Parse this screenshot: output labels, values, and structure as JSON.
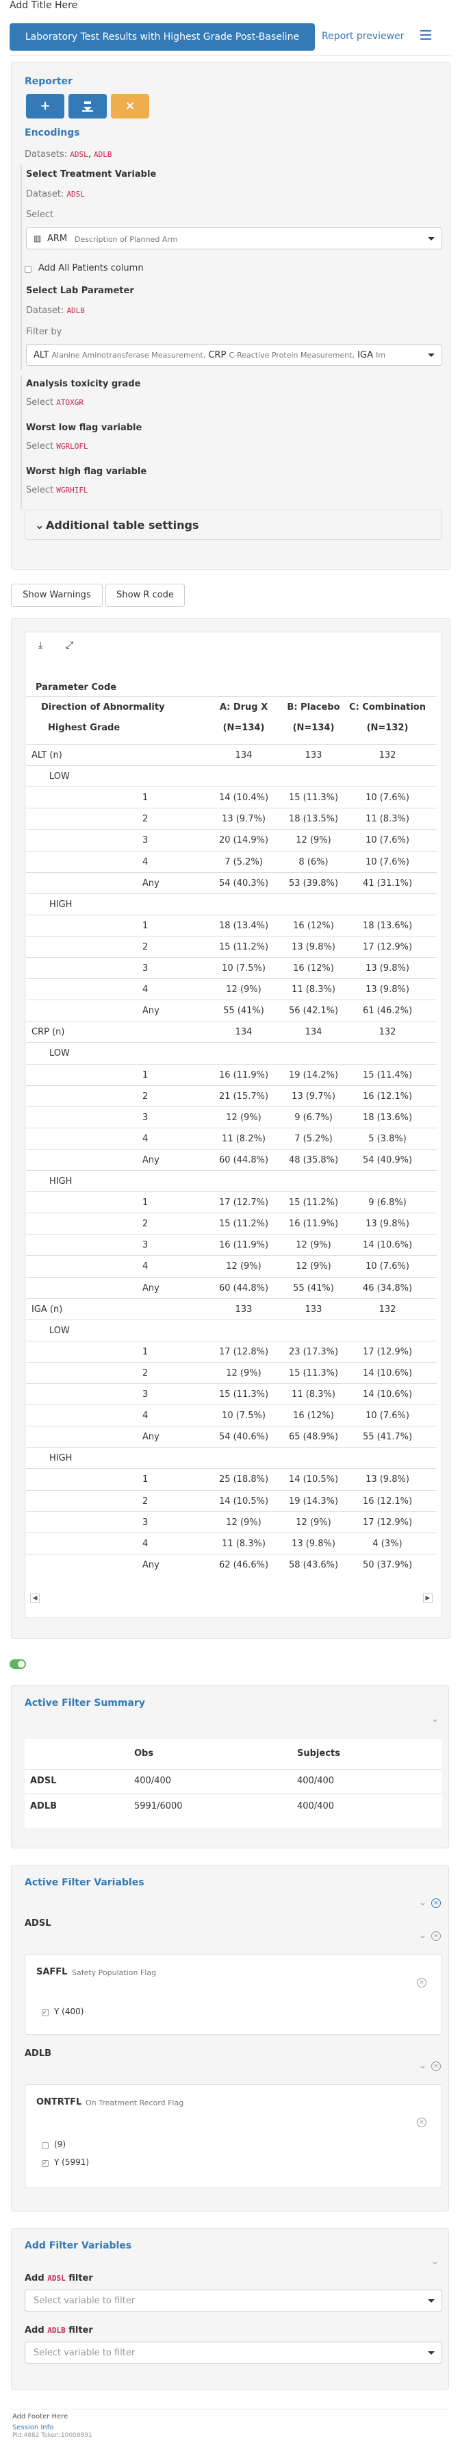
{
  "app": {
    "title": "Add Title Here"
  },
  "nav": {
    "active_tab": "Laboratory Test Results with Highest Grade Post-Baseline",
    "tab2": "Report previewer"
  },
  "encoding": {
    "reporter_label": "Reporter",
    "encodings_label": "Encodings",
    "datasets_label": "Datasets:",
    "ds1": "ADSL",
    "ds2": "ADLB",
    "treat_title": "Select Treatment Variable",
    "dataset_label": "Dataset:",
    "treat_ds": "ADSL",
    "select_label": "Select",
    "treat_value": "ARM",
    "treat_desc": "Description of Planned Arm",
    "all_patients": "Add All Patients column",
    "lab_title": "Select Lab Parameter",
    "lab_ds": "ADLB",
    "filter_by": "Filter by",
    "lab_v1": "ALT",
    "lab_d1": "Alanine Aminotransferase Measurement,",
    "lab_v2": "CRP",
    "lab_d2": "C-Reactive Protein Measurement,",
    "lab_v3": "IGA",
    "lab_d3": "Im",
    "tox_title": "Analysis toxicity grade",
    "tox_select": "Select",
    "tox_val": "ATOXGR",
    "low_title": "Worst low flag variable",
    "low_select": "Select",
    "low_val": "WGRLOFL",
    "high_title": "Worst high flag variable",
    "high_select": "Select",
    "high_val": "WGRHIFL",
    "additional": "Additional table settings"
  },
  "buttons": {
    "warnings": "Show Warnings",
    "rcode": "Show R code"
  },
  "table": {
    "param_header": "Parameter Code",
    "dir_header": "Direction of Abnormality",
    "grade_header": "Highest Grade",
    "colA": "A: Drug X",
    "colB": "B: Placebo",
    "colC": "C: Combination",
    "nA": "(N=134)",
    "nB": "(N=134)",
    "nC": "(N=132)",
    "rows": [
      {
        "l": "ALT (n)",
        "lvl": 0,
        "a": "134",
        "b": "133",
        "c": "132"
      },
      {
        "l": "LOW",
        "lvl": 1,
        "a": "",
        "b": "",
        "c": ""
      },
      {
        "l": "1",
        "lvl": 2,
        "a": "14 (10.4%)",
        "b": "15 (11.3%)",
        "c": "10 (7.6%)"
      },
      {
        "l": "2",
        "lvl": 2,
        "a": "13 (9.7%)",
        "b": "18 (13.5%)",
        "c": "11 (8.3%)"
      },
      {
        "l": "3",
        "lvl": 2,
        "a": "20 (14.9%)",
        "b": "12 (9%)",
        "c": "10 (7.6%)"
      },
      {
        "l": "4",
        "lvl": 2,
        "a": "7 (5.2%)",
        "b": "8 (6%)",
        "c": "10 (7.6%)"
      },
      {
        "l": "Any",
        "lvl": 2,
        "a": "54 (40.3%)",
        "b": "53 (39.8%)",
        "c": "41 (31.1%)"
      },
      {
        "l": "HIGH",
        "lvl": 1,
        "a": "",
        "b": "",
        "c": ""
      },
      {
        "l": "1",
        "lvl": 2,
        "a": "18 (13.4%)",
        "b": "16 (12%)",
        "c": "18 (13.6%)"
      },
      {
        "l": "2",
        "lvl": 2,
        "a": "15 (11.2%)",
        "b": "13 (9.8%)",
        "c": "17 (12.9%)"
      },
      {
        "l": "3",
        "lvl": 2,
        "a": "10 (7.5%)",
        "b": "16 (12%)",
        "c": "13 (9.8%)"
      },
      {
        "l": "4",
        "lvl": 2,
        "a": "12 (9%)",
        "b": "11 (8.3%)",
        "c": "13 (9.8%)"
      },
      {
        "l": "Any",
        "lvl": 2,
        "a": "55 (41%)",
        "b": "56 (42.1%)",
        "c": "61 (46.2%)"
      },
      {
        "l": "CRP (n)",
        "lvl": 0,
        "a": "134",
        "b": "134",
        "c": "132"
      },
      {
        "l": "LOW",
        "lvl": 1,
        "a": "",
        "b": "",
        "c": ""
      },
      {
        "l": "1",
        "lvl": 2,
        "a": "16 (11.9%)",
        "b": "19 (14.2%)",
        "c": "15 (11.4%)"
      },
      {
        "l": "2",
        "lvl": 2,
        "a": "21 (15.7%)",
        "b": "13 (9.7%)",
        "c": "16 (12.1%)"
      },
      {
        "l": "3",
        "lvl": 2,
        "a": "12 (9%)",
        "b": "9 (6.7%)",
        "c": "18 (13.6%)"
      },
      {
        "l": "4",
        "lvl": 2,
        "a": "11 (8.2%)",
        "b": "7 (5.2%)",
        "c": "5 (3.8%)"
      },
      {
        "l": "Any",
        "lvl": 2,
        "a": "60 (44.8%)",
        "b": "48 (35.8%)",
        "c": "54 (40.9%)"
      },
      {
        "l": "HIGH",
        "lvl": 1,
        "a": "",
        "b": "",
        "c": ""
      },
      {
        "l": "1",
        "lvl": 2,
        "a": "17 (12.7%)",
        "b": "15 (11.2%)",
        "c": "9 (6.8%)"
      },
      {
        "l": "2",
        "lvl": 2,
        "a": "15 (11.2%)",
        "b": "16 (11.9%)",
        "c": "13 (9.8%)"
      },
      {
        "l": "3",
        "lvl": 2,
        "a": "16 (11.9%)",
        "b": "12 (9%)",
        "c": "14 (10.6%)"
      },
      {
        "l": "4",
        "lvl": 2,
        "a": "12 (9%)",
        "b": "12 (9%)",
        "c": "10 (7.6%)"
      },
      {
        "l": "Any",
        "lvl": 2,
        "a": "60 (44.8%)",
        "b": "55 (41%)",
        "c": "46 (34.8%)"
      },
      {
        "l": "IGA (n)",
        "lvl": 0,
        "a": "133",
        "b": "133",
        "c": "132"
      },
      {
        "l": "LOW",
        "lvl": 1,
        "a": "",
        "b": "",
        "c": ""
      },
      {
        "l": "1",
        "lvl": 2,
        "a": "17 (12.8%)",
        "b": "23 (17.3%)",
        "c": "17 (12.9%)"
      },
      {
        "l": "2",
        "lvl": 2,
        "a": "12 (9%)",
        "b": "15 (11.3%)",
        "c": "14 (10.6%)"
      },
      {
        "l": "3",
        "lvl": 2,
        "a": "15 (11.3%)",
        "b": "11 (8.3%)",
        "c": "14 (10.6%)"
      },
      {
        "l": "4",
        "lvl": 2,
        "a": "10 (7.5%)",
        "b": "16 (12%)",
        "c": "10 (7.6%)"
      },
      {
        "l": "Any",
        "lvl": 2,
        "a": "54 (40.6%)",
        "b": "65 (48.9%)",
        "c": "55 (41.7%)"
      },
      {
        "l": "HIGH",
        "lvl": 1,
        "a": "",
        "b": "",
        "c": ""
      },
      {
        "l": "1",
        "lvl": 2,
        "a": "25 (18.8%)",
        "b": "14 (10.5%)",
        "c": "13 (9.8%)"
      },
      {
        "l": "2",
        "lvl": 2,
        "a": "14 (10.5%)",
        "b": "19 (14.3%)",
        "c": "16 (12.1%)"
      },
      {
        "l": "3",
        "lvl": 2,
        "a": "12 (9%)",
        "b": "12 (9%)",
        "c": "17 (12.9%)"
      },
      {
        "l": "4",
        "lvl": 2,
        "a": "11 (8.3%)",
        "b": "13 (9.8%)",
        "c": "4 (3%)"
      },
      {
        "l": "Any",
        "lvl": 2,
        "a": "62 (46.6%)",
        "b": "58 (43.6%)",
        "c": "50 (37.9%)"
      }
    ]
  },
  "summary": {
    "title": "Active Filter Summary",
    "obs": "Obs",
    "subjects": "Subjects",
    "r1": "ADSL",
    "r1o": "400/400",
    "r1s": "400/400",
    "r2": "ADLB",
    "r2o": "5991/6000",
    "r2s": "400/400"
  },
  "active": {
    "title": "Active Filter Variables",
    "adsl": "ADSL",
    "saffl": "SAFFL",
    "saffl_desc": "Safety Population Flag",
    "saffl_opt": "Y (400)",
    "adlb": "ADLB",
    "ontrtfl": "ONTRTFL",
    "ontrtfl_desc": "On Treatment Record Flag",
    "ont_opt1": "(9)",
    "ont_opt2": "Y (5991)"
  },
  "addfilter": {
    "title": "Add Filter Variables",
    "add": "Add",
    "filter": "filter",
    "ds1": "ADSL",
    "ds2": "ADLB",
    "placeholder": "Select variable to filter"
  },
  "footer": {
    "text": "Add Footer Here",
    "session": "Session Info",
    "token": "Pid:4882 Token:10008891"
  }
}
